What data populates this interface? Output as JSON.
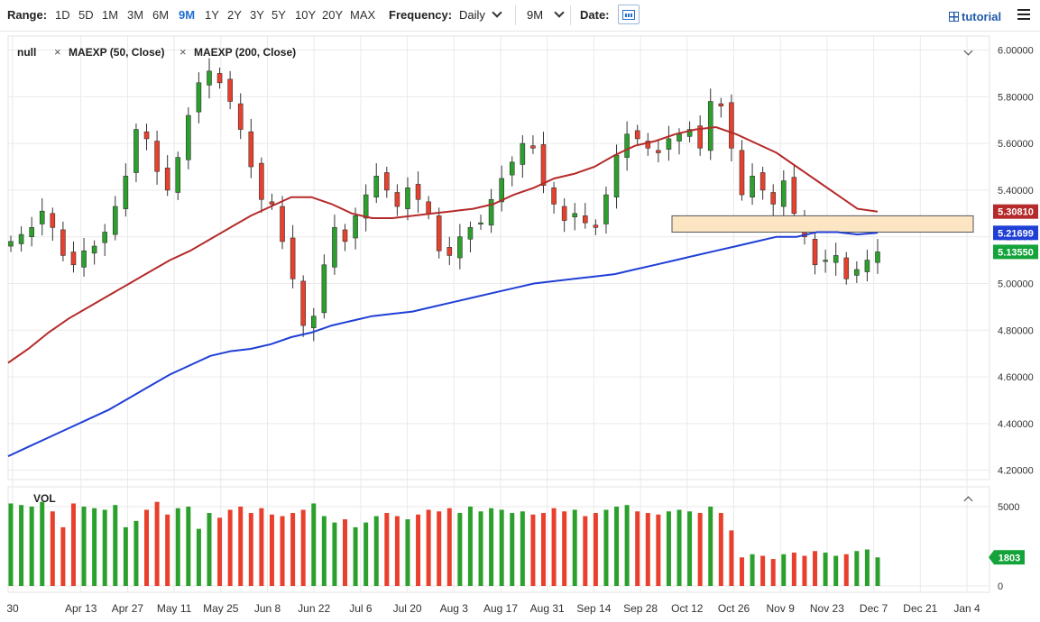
{
  "toolbar": {
    "range_label": "Range:",
    "ranges": [
      "1D",
      "5D",
      "1M",
      "3M",
      "6M",
      "9M",
      "1Y",
      "2Y",
      "3Y",
      "5Y",
      "10Y",
      "20Y",
      "MAX"
    ],
    "active_range": "9M",
    "frequency_label": "Frequency:",
    "frequency_value": "Daily",
    "period_value": "9M",
    "date_label": "Date:",
    "tutorial_label": "tutorial",
    "icons": [
      "calendar-icon",
      "tutorial-icon",
      "hamburger-menu-icon",
      "chevron-down-icon"
    ]
  },
  "legend": {
    "series": [
      "null",
      "MAEXP (50, Close)",
      "MAEXP (200, Close)"
    ],
    "volume_label": "VOL"
  },
  "price_labels": {
    "ma50": "5.30810",
    "ma200": "5.21699",
    "close": "5.13550",
    "volume": "1803"
  },
  "colors": {
    "up": "#2ca02c",
    "down": "#e8402c",
    "ma50": "#b52a2a",
    "ma200": "#1f3fd6",
    "zone_fill": "#fbe5c2",
    "active": "#1f6fd1"
  },
  "chart_data": {
    "type": "candlestick",
    "x_tick_labels": [
      "30",
      "Apr 13",
      "Apr 27",
      "May 11",
      "May 25",
      "Jun 8",
      "Jun 22",
      "Jul 6",
      "Jul 20",
      "Aug 3",
      "Aug 17",
      "Aug 31",
      "Sep 14",
      "Sep 28",
      "Oct 12",
      "Oct 26",
      "Nov 9",
      "Nov 23",
      "Dec 7",
      "Dec 21",
      "Jan 4"
    ],
    "y_tick_labels": [
      "6.00000",
      "5.80000",
      "5.60000",
      "5.40000",
      "5.20000",
      "5.00000",
      "4.80000",
      "4.60000",
      "4.40000",
      "4.20000"
    ],
    "ylim": [
      4.16,
      6.06
    ],
    "grid": true,
    "close": [
      5.18,
      5.21,
      5.24,
      5.31,
      5.24,
      5.12,
      5.08,
      5.14,
      5.16,
      5.22,
      5.33,
      5.46,
      5.66,
      5.62,
      5.48,
      5.4,
      5.54,
      5.72,
      5.86,
      5.91,
      5.86,
      5.78,
      5.66,
      5.5,
      5.36,
      5.34,
      5.18,
      5.02,
      4.82,
      4.86,
      5.08,
      5.24,
      5.18,
      5.29,
      5.38,
      5.46,
      5.4,
      5.33,
      5.41,
      5.36,
      5.3,
      5.14,
      5.12,
      5.2,
      5.24,
      5.26,
      5.36,
      5.45,
      5.52,
      5.6,
      5.58,
      5.42,
      5.34,
      5.27,
      5.3,
      5.26,
      5.24,
      5.38,
      5.55,
      5.64,
      5.62,
      5.58,
      5.56,
      5.62,
      5.64,
      5.66,
      5.58,
      5.78,
      5.76,
      5.58,
      5.38,
      5.46,
      5.4,
      5.34,
      5.44,
      5.3,
      5.2,
      5.08,
      5.1,
      5.12,
      5.02,
      5.06,
      5.1,
      5.1355
    ],
    "ma50": [
      4.66,
      4.72,
      4.79,
      4.85,
      4.9,
      4.95,
      5.0,
      5.05,
      5.1,
      5.14,
      5.19,
      5.24,
      5.29,
      5.33,
      5.37,
      5.37,
      5.34,
      5.3,
      5.28,
      5.28,
      5.29,
      5.3,
      5.31,
      5.32,
      5.34,
      5.38,
      5.41,
      5.45,
      5.47,
      5.5,
      5.55,
      5.59,
      5.61,
      5.64,
      5.66,
      5.67,
      5.64,
      5.6,
      5.56,
      5.5,
      5.44,
      5.38,
      5.32,
      5.3081
    ],
    "ma200": [
      4.26,
      4.3,
      4.34,
      4.38,
      4.42,
      4.46,
      4.51,
      4.56,
      4.61,
      4.65,
      4.69,
      4.71,
      4.72,
      4.74,
      4.77,
      4.79,
      4.82,
      4.84,
      4.86,
      4.87,
      4.88,
      4.9,
      4.92,
      4.94,
      4.96,
      4.98,
      5.0,
      5.01,
      5.02,
      5.03,
      5.04,
      5.06,
      5.08,
      5.1,
      5.12,
      5.14,
      5.16,
      5.18,
      5.2,
      5.2,
      5.22,
      5.22,
      5.21,
      5.21699
    ],
    "zone": {
      "ymin": 5.22,
      "ymax": 5.29,
      "x_start_label": "Oct 12",
      "x_end_label": "Jan 4"
    },
    "volume": {
      "y_tick_labels": [
        "5000",
        "0"
      ],
      "ylim": [
        0,
        5000
      ],
      "values": [
        5200,
        5100,
        5000,
        5300,
        4700,
        3700,
        5200,
        5000,
        4900,
        4800,
        5100,
        3700,
        4100,
        4800,
        5300,
        4500,
        4900,
        5000,
        3600,
        4600,
        4300,
        4800,
        5000,
        4600,
        4900,
        4500,
        4400,
        4600,
        4800,
        5200,
        4400,
        4000,
        4200,
        3700,
        4000,
        4400,
        4600,
        4400,
        4200,
        4500,
        4800,
        4700,
        4900,
        4600,
        5000,
        4700,
        4900,
        4800,
        4600,
        4700,
        4500,
        4600,
        4900,
        4700,
        4800,
        4400,
        4600,
        4800,
        5000,
        5100,
        4700,
        4600,
        4500,
        4700,
        4800,
        4700,
        4600,
        5000,
        4600,
        3500,
        1800,
        2000,
        1900,
        1700,
        2000,
        2100,
        1900,
        2200,
        2100,
        1900,
        2000,
        2200,
        2300,
        1803
      ]
    }
  }
}
